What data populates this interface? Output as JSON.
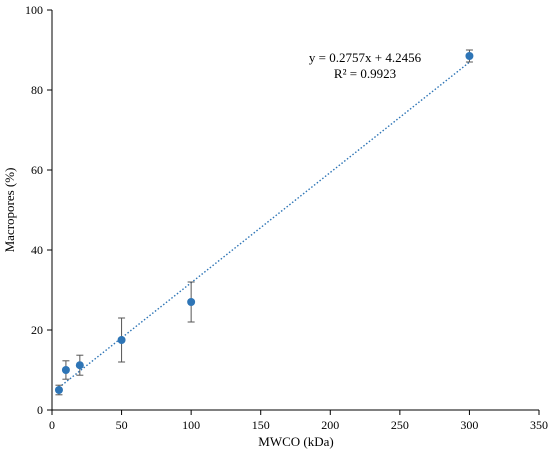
{
  "chart_data": {
    "type": "scatter",
    "title": "",
    "xlabel": "MWCO (kDa)",
    "ylabel": "Macropores (%)",
    "xlim": [
      0,
      350
    ],
    "ylim": [
      0,
      100
    ],
    "x_ticks": [
      0,
      50,
      100,
      150,
      200,
      250,
      300,
      350
    ],
    "y_ticks": [
      0,
      20,
      40,
      60,
      80,
      100
    ],
    "grid": false,
    "legend": "none",
    "series": [
      {
        "points": [
          {
            "x": 5,
            "y": 5.0,
            "err": 1.2
          },
          {
            "x": 10,
            "y": 10.0,
            "err": 2.3
          },
          {
            "x": 20,
            "y": 11.2,
            "err": 2.5
          },
          {
            "x": 50,
            "y": 17.5,
            "err": 5.5
          },
          {
            "x": 100,
            "y": 27.0,
            "err": 5.0
          },
          {
            "x": 300,
            "y": 88.5,
            "err": 1.5
          }
        ],
        "color": "#2e75b6"
      }
    ],
    "trendline": {
      "slope": 0.2757,
      "intercept": 4.2456,
      "x_range": [
        5,
        300
      ],
      "style": "dotted",
      "color": "#2e75b6"
    },
    "annotations": {
      "equation": "y = 0.2757x + 4.2456",
      "r_squared": "R² = 0.9923"
    }
  }
}
